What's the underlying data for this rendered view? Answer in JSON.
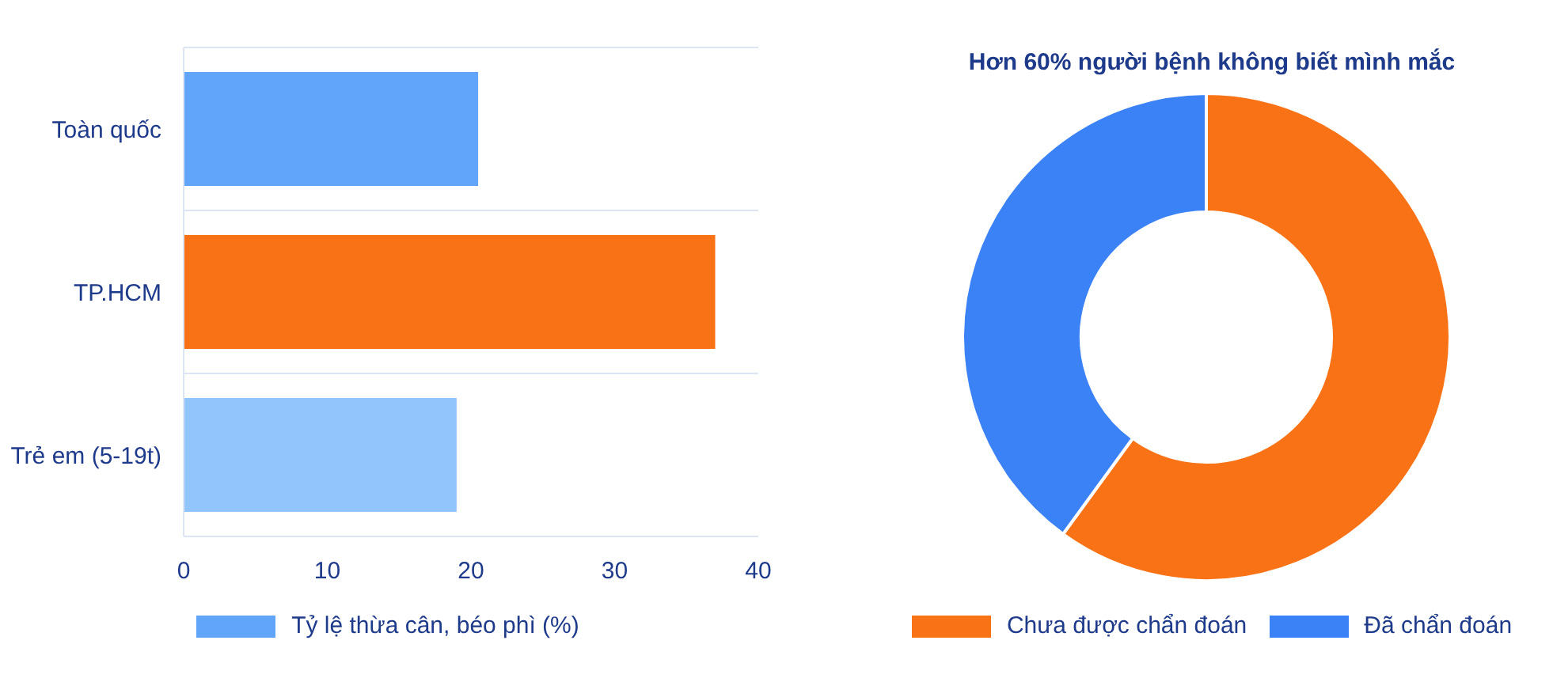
{
  "chart_data": [
    {
      "type": "bar",
      "orientation": "horizontal",
      "categories": [
        "Toàn quốc",
        "TP.HCM",
        "Trẻ em (5-19t)"
      ],
      "series": [
        {
          "name": "Tỷ lệ thừa cân, béo phì (%)",
          "colors": [
            "#60a5fa",
            "#f97316",
            "#93c5fd"
          ],
          "values": [
            20.5,
            37,
            19
          ]
        }
      ],
      "xlim": [
        0,
        40
      ],
      "xticks": [
        0,
        10,
        20,
        30,
        40
      ],
      "grid": "y",
      "legend": "bottom"
    },
    {
      "type": "donut",
      "title": "Hơn 60% người bệnh không biết mình mắc",
      "categories": [
        "Chưa được chẩn đoán",
        "Đã chẩn đoán"
      ],
      "values": [
        60,
        40
      ],
      "colors": [
        "#f97316",
        "#3b82f6"
      ],
      "legend": "bottom"
    }
  ]
}
